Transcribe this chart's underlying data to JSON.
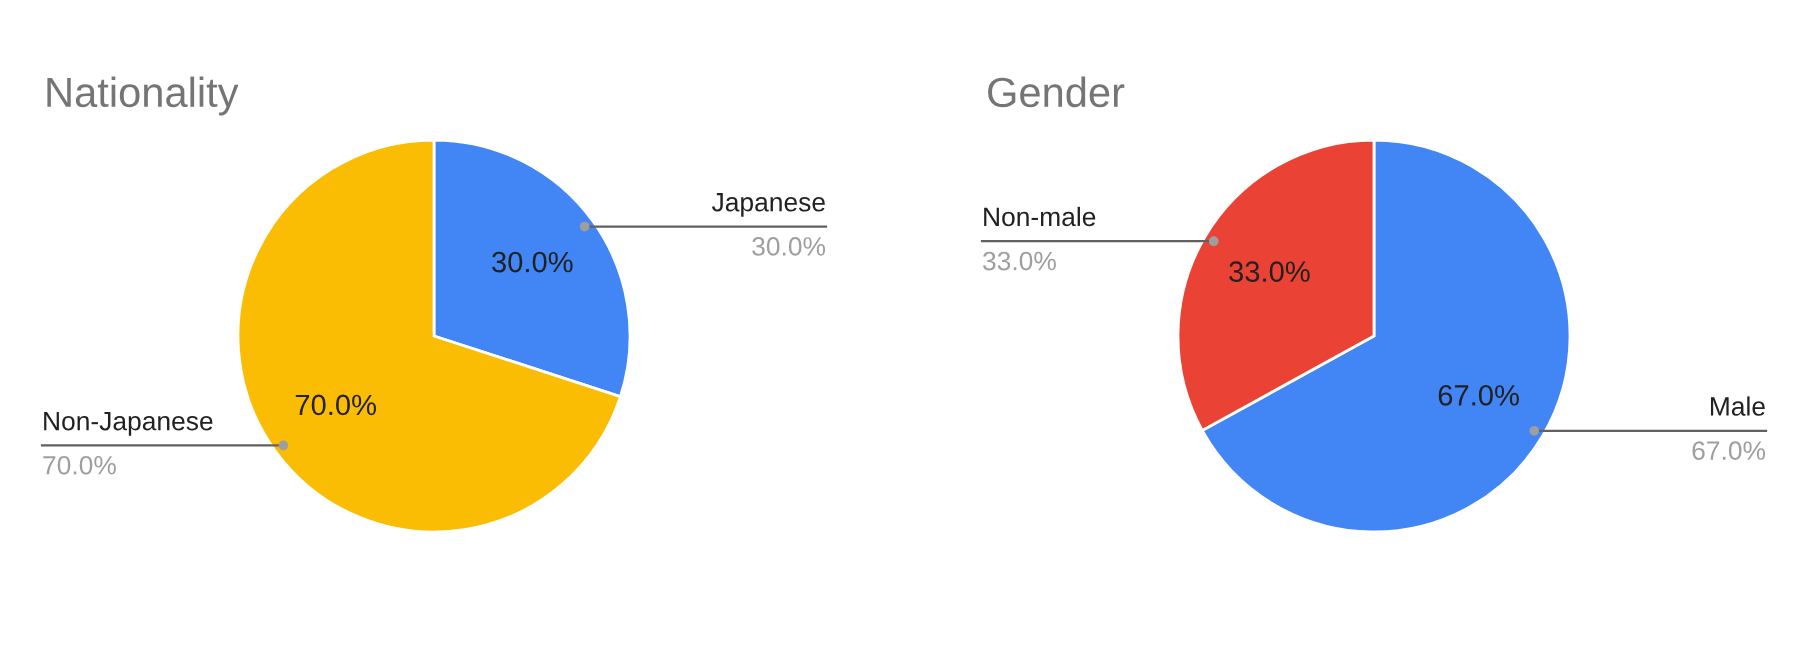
{
  "chart_data": [
    {
      "type": "pie",
      "title": "Nationality",
      "categories": [
        "Japanese",
        "Non-Japanese"
      ],
      "values": [
        30,
        70
      ],
      "colors": [
        "#4285f4",
        "#fbbc04"
      ],
      "value_labels": [
        "30.0%",
        "70.0%"
      ],
      "legend": false
    },
    {
      "type": "pie",
      "title": "Gender",
      "categories": [
        "Male",
        "Non-male"
      ],
      "values": [
        67,
        33
      ],
      "colors": [
        "#4285f4",
        "#ea4335"
      ],
      "value_labels": [
        "67.0%",
        "33.0%"
      ],
      "legend": false
    }
  ]
}
